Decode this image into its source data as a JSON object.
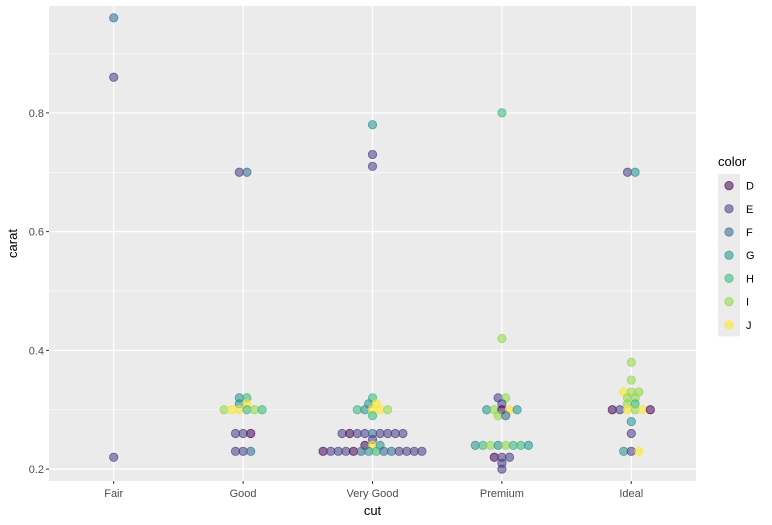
{
  "chart_data": {
    "type": "scatter",
    "xlabel": "cut",
    "ylabel": "carat",
    "categories": [
      "Fair",
      "Good",
      "Very Good",
      "Premium",
      "Ideal"
    ],
    "y_ticks": [
      0.2,
      0.4,
      0.6,
      0.8
    ],
    "ylim": [
      0.18,
      0.98
    ],
    "grid": true,
    "legend": {
      "title": "color",
      "position": "right",
      "entries": [
        "D",
        "E",
        "F",
        "G",
        "H",
        "I",
        "J"
      ]
    },
    "colors": {
      "D": "#440154",
      "E": "#443A83",
      "F": "#31688E",
      "G": "#21908D",
      "H": "#35B779",
      "I": "#8FD744",
      "J": "#FDE725"
    },
    "panel_background": "#EBEBEB",
    "grid_color": "#FFFFFF",
    "points": [
      {
        "x": "Fair",
        "y": 0.96,
        "color": "F"
      },
      {
        "x": "Fair",
        "y": 0.86,
        "color": "E"
      },
      {
        "x": "Fair",
        "y": 0.22,
        "color": "E"
      },
      {
        "x": "Good",
        "y": 0.7,
        "color": "E"
      },
      {
        "x": "Good",
        "y": 0.7,
        "color": "F"
      },
      {
        "x": "Good",
        "y": 0.32,
        "color": "G"
      },
      {
        "x": "Good",
        "y": 0.32,
        "color": "H"
      },
      {
        "x": "Good",
        "y": 0.31,
        "color": "G"
      },
      {
        "x": "Good",
        "y": 0.31,
        "color": "J"
      },
      {
        "x": "Good",
        "y": 0.3,
        "color": "I"
      },
      {
        "x": "Good",
        "y": 0.3,
        "color": "J"
      },
      {
        "x": "Good",
        "y": 0.3,
        "color": "J"
      },
      {
        "x": "Good",
        "y": 0.3,
        "color": "H"
      },
      {
        "x": "Good",
        "y": 0.3,
        "color": "I"
      },
      {
        "x": "Good",
        "y": 0.3,
        "color": "H"
      },
      {
        "x": "Good",
        "y": 0.26,
        "color": "E"
      },
      {
        "x": "Good",
        "y": 0.26,
        "color": "E"
      },
      {
        "x": "Good",
        "y": 0.26,
        "color": "D"
      },
      {
        "x": "Good",
        "y": 0.23,
        "color": "E"
      },
      {
        "x": "Good",
        "y": 0.23,
        "color": "E"
      },
      {
        "x": "Good",
        "y": 0.23,
        "color": "F"
      },
      {
        "x": "Very Good",
        "y": 0.78,
        "color": "G"
      },
      {
        "x": "Very Good",
        "y": 0.73,
        "color": "E"
      },
      {
        "x": "Very Good",
        "y": 0.71,
        "color": "E"
      },
      {
        "x": "Very Good",
        "y": 0.32,
        "color": "H"
      },
      {
        "x": "Very Good",
        "y": 0.31,
        "color": "G"
      },
      {
        "x": "Very Good",
        "y": 0.31,
        "color": "J"
      },
      {
        "x": "Very Good",
        "y": 0.3,
        "color": "H"
      },
      {
        "x": "Very Good",
        "y": 0.3,
        "color": "G"
      },
      {
        "x": "Very Good",
        "y": 0.3,
        "color": "J"
      },
      {
        "x": "Very Good",
        "y": 0.3,
        "color": "J"
      },
      {
        "x": "Very Good",
        "y": 0.3,
        "color": "I"
      },
      {
        "x": "Very Good",
        "y": 0.29,
        "color": "H"
      },
      {
        "x": "Very Good",
        "y": 0.26,
        "color": "E"
      },
      {
        "x": "Very Good",
        "y": 0.26,
        "color": "D"
      },
      {
        "x": "Very Good",
        "y": 0.26,
        "color": "E"
      },
      {
        "x": "Very Good",
        "y": 0.26,
        "color": "E"
      },
      {
        "x": "Very Good",
        "y": 0.26,
        "color": "F"
      },
      {
        "x": "Very Good",
        "y": 0.26,
        "color": "E"
      },
      {
        "x": "Very Good",
        "y": 0.26,
        "color": "E"
      },
      {
        "x": "Very Good",
        "y": 0.26,
        "color": "E"
      },
      {
        "x": "Very Good",
        "y": 0.26,
        "color": "E"
      },
      {
        "x": "Very Good",
        "y": 0.25,
        "color": "E"
      },
      {
        "x": "Very Good",
        "y": 0.24,
        "color": "D"
      },
      {
        "x": "Very Good",
        "y": 0.24,
        "color": "J"
      },
      {
        "x": "Very Good",
        "y": 0.24,
        "color": "G"
      },
      {
        "x": "Very Good",
        "y": 0.23,
        "color": "D"
      },
      {
        "x": "Very Good",
        "y": 0.23,
        "color": "E"
      },
      {
        "x": "Very Good",
        "y": 0.23,
        "color": "E"
      },
      {
        "x": "Very Good",
        "y": 0.23,
        "color": "E"
      },
      {
        "x": "Very Good",
        "y": 0.23,
        "color": "D"
      },
      {
        "x": "Very Good",
        "y": 0.23,
        "color": "F"
      },
      {
        "x": "Very Good",
        "y": 0.23,
        "color": "G"
      },
      {
        "x": "Very Good",
        "y": 0.23,
        "color": "H"
      },
      {
        "x": "Very Good",
        "y": 0.23,
        "color": "F"
      },
      {
        "x": "Very Good",
        "y": 0.23,
        "color": "F"
      },
      {
        "x": "Very Good",
        "y": 0.23,
        "color": "E"
      },
      {
        "x": "Very Good",
        "y": 0.23,
        "color": "E"
      },
      {
        "x": "Very Good",
        "y": 0.23,
        "color": "E"
      },
      {
        "x": "Very Good",
        "y": 0.23,
        "color": "E"
      },
      {
        "x": "Premium",
        "y": 0.8,
        "color": "H"
      },
      {
        "x": "Premium",
        "y": 0.42,
        "color": "I"
      },
      {
        "x": "Premium",
        "y": 0.32,
        "color": "E"
      },
      {
        "x": "Premium",
        "y": 0.32,
        "color": "I"
      },
      {
        "x": "Premium",
        "y": 0.31,
        "color": "E"
      },
      {
        "x": "Premium",
        "y": 0.3,
        "color": "G"
      },
      {
        "x": "Premium",
        "y": 0.3,
        "color": "I"
      },
      {
        "x": "Premium",
        "y": 0.3,
        "color": "D"
      },
      {
        "x": "Premium",
        "y": 0.3,
        "color": "J"
      },
      {
        "x": "Premium",
        "y": 0.3,
        "color": "G"
      },
      {
        "x": "Premium",
        "y": 0.29,
        "color": "I"
      },
      {
        "x": "Premium",
        "y": 0.29,
        "color": "F"
      },
      {
        "x": "Premium",
        "y": 0.24,
        "color": "G"
      },
      {
        "x": "Premium",
        "y": 0.24,
        "color": "H"
      },
      {
        "x": "Premium",
        "y": 0.24,
        "color": "I"
      },
      {
        "x": "Premium",
        "y": 0.24,
        "color": "G"
      },
      {
        "x": "Premium",
        "y": 0.24,
        "color": "I"
      },
      {
        "x": "Premium",
        "y": 0.24,
        "color": "H"
      },
      {
        "x": "Premium",
        "y": 0.24,
        "color": "H"
      },
      {
        "x": "Premium",
        "y": 0.24,
        "color": "G"
      },
      {
        "x": "Premium",
        "y": 0.22,
        "color": "D"
      },
      {
        "x": "Premium",
        "y": 0.22,
        "color": "E"
      },
      {
        "x": "Premium",
        "y": 0.22,
        "color": "E"
      },
      {
        "x": "Premium",
        "y": 0.21,
        "color": "E"
      },
      {
        "x": "Premium",
        "y": 0.2,
        "color": "E"
      },
      {
        "x": "Ideal",
        "y": 0.7,
        "color": "E"
      },
      {
        "x": "Ideal",
        "y": 0.7,
        "color": "G"
      },
      {
        "x": "Ideal",
        "y": 0.38,
        "color": "I"
      },
      {
        "x": "Ideal",
        "y": 0.35,
        "color": "I"
      },
      {
        "x": "Ideal",
        "y": 0.33,
        "color": "J"
      },
      {
        "x": "Ideal",
        "y": 0.33,
        "color": "I"
      },
      {
        "x": "Ideal",
        "y": 0.33,
        "color": "I"
      },
      {
        "x": "Ideal",
        "y": 0.32,
        "color": "I"
      },
      {
        "x": "Ideal",
        "y": 0.32,
        "color": "I"
      },
      {
        "x": "Ideal",
        "y": 0.31,
        "color": "I"
      },
      {
        "x": "Ideal",
        "y": 0.31,
        "color": "H"
      },
      {
        "x": "Ideal",
        "y": 0.3,
        "color": "D"
      },
      {
        "x": "Ideal",
        "y": 0.3,
        "color": "E"
      },
      {
        "x": "Ideal",
        "y": 0.3,
        "color": "J"
      },
      {
        "x": "Ideal",
        "y": 0.3,
        "color": "I"
      },
      {
        "x": "Ideal",
        "y": 0.3,
        "color": "J"
      },
      {
        "x": "Ideal",
        "y": 0.3,
        "color": "D"
      },
      {
        "x": "Ideal",
        "y": 0.28,
        "color": "G"
      },
      {
        "x": "Ideal",
        "y": 0.26,
        "color": "E"
      },
      {
        "x": "Ideal",
        "y": 0.23,
        "color": "G"
      },
      {
        "x": "Ideal",
        "y": 0.23,
        "color": "E"
      },
      {
        "x": "Ideal",
        "y": 0.23,
        "color": "J"
      }
    ]
  }
}
